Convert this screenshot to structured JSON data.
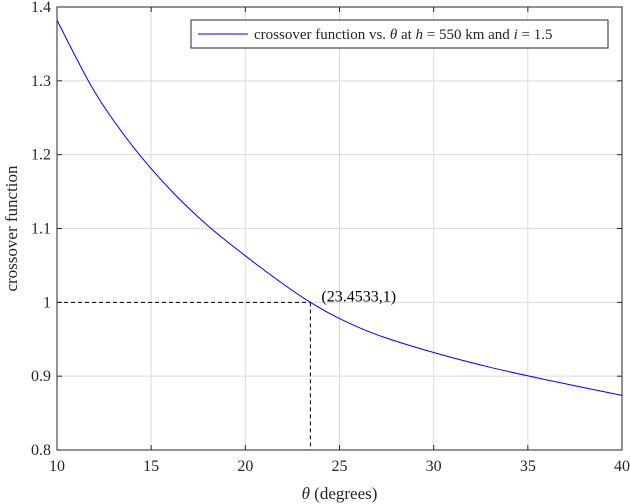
{
  "chart_data": {
    "type": "line",
    "xlabel_symbol": "θ",
    "xlabel_text": " (degrees)",
    "ylabel": "crossover function",
    "xlim": [
      10,
      40
    ],
    "ylim": [
      0.8,
      1.4
    ],
    "grid": true,
    "legend_position": "top-right",
    "xticks": [
      10,
      15,
      20,
      25,
      30,
      35,
      40
    ],
    "yticks": [
      0.8,
      0.9,
      1,
      1.1,
      1.2,
      1.3,
      1.4
    ],
    "xtick_labels": [
      "10",
      "15",
      "20",
      "25",
      "30",
      "35",
      "40"
    ],
    "ytick_labels": [
      "0.8",
      "0.9",
      "1",
      "1.1",
      "1.2",
      "1.3",
      "1.4"
    ],
    "legend": {
      "prefix": "crossover function vs. ",
      "theta": "θ",
      "at": " at ",
      "h": "h",
      "h_value": " = 550 km and ",
      "i": "i",
      "i_value": " = 1.5"
    },
    "series": [
      {
        "color": "#0000ff",
        "x": [
          10,
          12,
          14,
          16,
          18,
          20,
          22,
          23.4533,
          25,
          27,
          30,
          33,
          36,
          40
        ],
        "y": [
          1.382,
          1.285,
          1.212,
          1.153,
          1.104,
          1.063,
          1.025,
          1.0,
          0.978,
          0.956,
          0.932,
          0.912,
          0.895,
          0.874
        ]
      }
    ],
    "crossover_point": {
      "x": 23.4533,
      "y": 1
    },
    "annotation": "(23.4533,1)"
  }
}
